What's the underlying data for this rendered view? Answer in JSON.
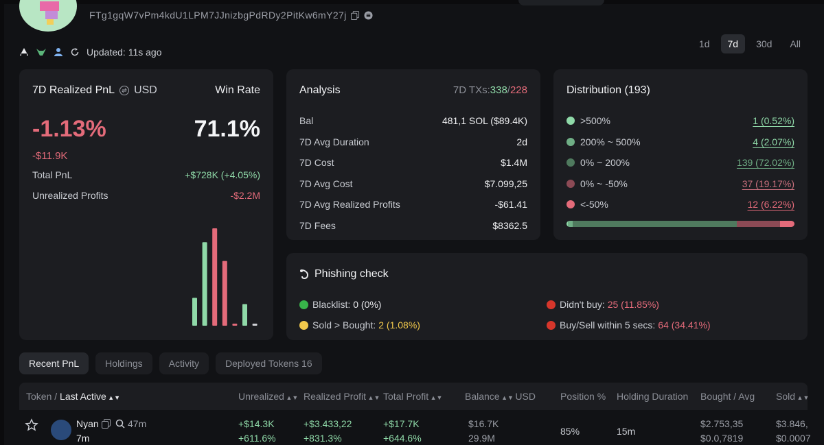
{
  "wallet": {
    "address": "FTg1gqW7vPm4kdU1LPM7JJnizbgPdRDy2PitKw6mY27j",
    "updated": "Updated: 11s ago"
  },
  "periods": [
    {
      "label": "1d",
      "active": false
    },
    {
      "label": "7d",
      "active": true
    },
    {
      "label": "30d",
      "active": false
    },
    {
      "label": "All",
      "active": false
    }
  ],
  "pnl": {
    "title": "7D Realized PnL",
    "currency": "USD",
    "winrate_label": "Win Rate",
    "percent": "-1.13%",
    "usd": "-$11.9K",
    "winrate": "71.1%",
    "total_label": "Total PnL",
    "total_value": "+$728K (+4.05%)",
    "unrealized_label": "Unrealized Profits",
    "unrealized_value": "-$2.2M",
    "bars": [
      {
        "value": 40,
        "color": "#8fd9a8"
      },
      {
        "value": 120,
        "color": "#8fd9a8"
      },
      {
        "value": 140,
        "color": "#e46b7a"
      },
      {
        "value": 93,
        "color": "#e46b7a"
      },
      {
        "value": 3,
        "color": "#e46b7a"
      },
      {
        "value": 31,
        "color": "#8fd9a8"
      },
      {
        "value": 3,
        "color": "#d0d2d6"
      }
    ]
  },
  "analysis": {
    "title": "Analysis",
    "tx_label": "7D TXs:",
    "tx_buys": "338",
    "tx_sep": "/",
    "tx_sells": "228",
    "rows": [
      {
        "label": "Bal",
        "value": "481,1 SOL ($89.4K)",
        "color": "#f1f2f4"
      },
      {
        "label": "7D Avg Duration",
        "value": "2d",
        "color": "#f1f2f4"
      },
      {
        "label": "7D Cost",
        "value": "$1.4M",
        "color": "#f1f2f4"
      },
      {
        "label": "7D Avg Cost",
        "value": "$7.099,25",
        "color": "#f1f2f4"
      },
      {
        "label": "7D Avg Realized Profits",
        "value": "-$61.41",
        "color": "#e46b7a"
      },
      {
        "label": "7D Fees",
        "value": "$8362.5",
        "color": "#f1f2f4"
      }
    ]
  },
  "distribution": {
    "title": "Distribution (193)",
    "rows": [
      {
        "label": ">500%",
        "value": "1 (0.52%)",
        "dot": "#8fd9a8",
        "color": "#8fd9a8",
        "fraction": 0.0052
      },
      {
        "label": "200% ~ 500%",
        "value": "4 (2.07%)",
        "dot": "#6fae85",
        "color": "#8fd9a8",
        "fraction": 0.0207
      },
      {
        "label": "0% ~ 200%",
        "value": "139 (72.02%)",
        "dot": "#4f7a5e",
        "color": "#6fae85",
        "fraction": 0.7202
      },
      {
        "label": "0% ~ -50%",
        "value": "37 (19.17%)",
        "dot": "#8c4a55",
        "color": "#c9707d",
        "fraction": 0.1917
      },
      {
        "label": "<-50%",
        "value": "12 (6.22%)",
        "dot": "#e46b7a",
        "color": "#e46b7a",
        "fraction": 0.0622
      }
    ]
  },
  "phishing": {
    "title": "Phishing check",
    "items": [
      {
        "label": "Blacklist:",
        "value": "0 (0%)",
        "ball": "#38b54a",
        "color": "#e8e9ec"
      },
      {
        "label": "Didn't buy:",
        "value": "25 (11.85%)",
        "ball": "#d6362b",
        "color": "#e46b7a"
      },
      {
        "label": "Sold > Bought:",
        "value": "2 (1.08%)",
        "ball": "#f2c94c",
        "color": "#f2c94c"
      },
      {
        "label": "Buy/Sell within 5 secs:",
        "value": "64 (34.41%)",
        "ball": "#d6362b",
        "color": "#e46b7a"
      }
    ]
  },
  "tabs": [
    {
      "label": "Recent PnL",
      "active": true
    },
    {
      "label": "Holdings",
      "active": false
    },
    {
      "label": "Activity",
      "active": false
    },
    {
      "label": "Deployed Tokens 16",
      "active": false
    }
  ],
  "table": {
    "headers": {
      "token": "Token",
      "sep": "/",
      "last_active": "Last Active",
      "unrealized": "Unrealized",
      "realized": "Realized Profit",
      "total": "Total Profit",
      "balance": "Balance",
      "usd": "USD",
      "position": "Position %",
      "holding": "Holding Duration",
      "bought": "Bought",
      "avg": "Avg",
      "sold": "Sold"
    },
    "row": {
      "name": "Nyan",
      "age": "47m",
      "last_active": "7m",
      "unrealized": "+$14.3K",
      "unrealized_pct": "+611.6%",
      "realized": "+$3.433,22",
      "realized_pct": "+831.3%",
      "total": "+$17.7K",
      "total_pct": "+644.6%",
      "balance_usd": "$16.7K",
      "balance_tokens": "29.9M",
      "position": "85%",
      "holding": "15m",
      "bought": "$2.753,35",
      "bought_avg": "$0.0,7819",
      "sold": "$3.846,",
      "sold_avg": "$0.0007"
    }
  }
}
